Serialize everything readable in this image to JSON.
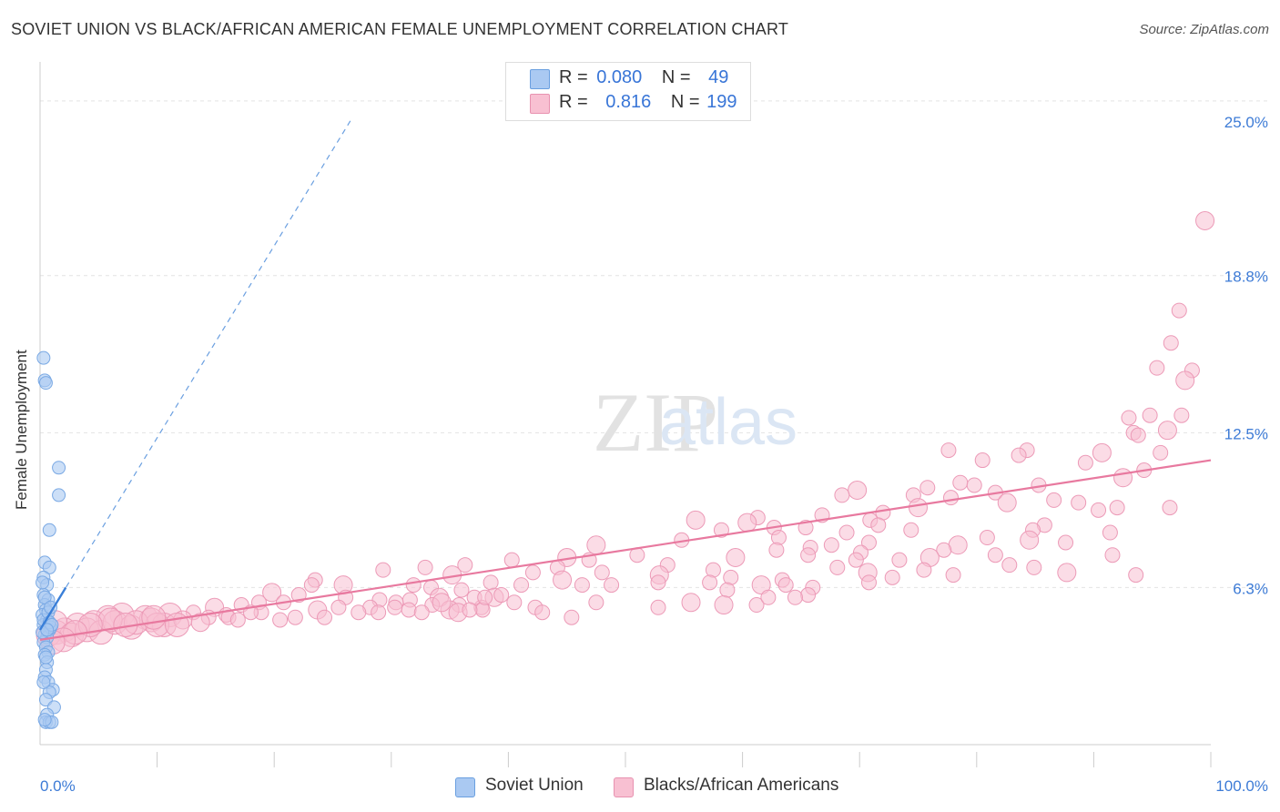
{
  "title": "SOVIET UNION VS BLACK/AFRICAN AMERICAN FEMALE UNEMPLOYMENT CORRELATION CHART",
  "source": "Source: ZipAtlas.com",
  "watermark": {
    "zip": "ZIP",
    "atlas": "atlas"
  },
  "legend": {
    "rows": [
      {
        "r_label": "R =",
        "r_value": "0.080",
        "n_label": "N =",
        "n_value": "49",
        "color": "#aac9f2",
        "border": "#6a9fe0"
      },
      {
        "r_label": "R =",
        "r_value": "0.816",
        "n_label": "N =",
        "n_value": "199",
        "color": "#f8c0d2",
        "border": "#e892b0"
      }
    ]
  },
  "bottom_legend": [
    {
      "label": "Soviet Union",
      "color": "#aac9f2",
      "border": "#6a9fe0"
    },
    {
      "label": "Blacks/African Americans",
      "color": "#f8c0d2",
      "border": "#e892b0"
    }
  ],
  "chart_data": {
    "type": "scatter",
    "title": "SOVIET UNION VS BLACK/AFRICAN AMERICAN FEMALE UNEMPLOYMENT CORRELATION CHART",
    "xlabel": "",
    "ylabel": "Female Unemployment",
    "xlim": [
      0,
      100
    ],
    "ylim": [
      0,
      27
    ],
    "x_tick_labels": [
      "0.0%",
      "100.0%"
    ],
    "y_ticks": [
      6.3,
      12.5,
      18.8,
      25.0
    ],
    "y_tick_labels": [
      "6.3%",
      "12.5%",
      "18.8%",
      "25.0%"
    ],
    "grid": true,
    "series": [
      {
        "name": "Soviet Union",
        "color": "#6a9fe0",
        "fill": "#aac9f2",
        "trend": {
          "x": [
            0,
            2.2
          ],
          "y": [
            4.6,
            6.3
          ],
          "dashed_extension": {
            "x": [
              0,
              26.5
            ],
            "y": [
              4.6,
              25.0
            ]
          }
        },
        "points": [
          [
            0.3,
            15.5
          ],
          [
            0.4,
            14.6
          ],
          [
            0.5,
            14.5
          ],
          [
            1.6,
            11.1
          ],
          [
            1.6,
            10.0
          ],
          [
            0.8,
            8.6
          ],
          [
            0.4,
            7.3
          ],
          [
            0.8,
            7.1
          ],
          [
            0.3,
            6.7
          ],
          [
            0.6,
            6.4
          ],
          [
            0.3,
            6.0
          ],
          [
            0.7,
            5.8
          ],
          [
            0.4,
            5.6
          ],
          [
            0.5,
            5.4
          ],
          [
            0.2,
            5.2
          ],
          [
            0.6,
            5.0
          ],
          [
            0.3,
            4.8
          ],
          [
            0.8,
            4.6
          ],
          [
            0.4,
            4.4
          ],
          [
            0.6,
            4.3
          ],
          [
            0.3,
            4.1
          ],
          [
            0.5,
            3.9
          ],
          [
            0.7,
            3.7
          ],
          [
            0.4,
            3.6
          ],
          [
            0.6,
            3.3
          ],
          [
            0.5,
            3.0
          ],
          [
            0.4,
            2.7
          ],
          [
            0.7,
            2.5
          ],
          [
            1.1,
            2.2
          ],
          [
            0.8,
            2.1
          ],
          [
            0.5,
            1.8
          ],
          [
            1.2,
            1.5
          ],
          [
            0.6,
            1.2
          ],
          [
            0.5,
            0.9
          ],
          [
            0.8,
            0.9
          ],
          [
            1.0,
            0.9
          ],
          [
            0.3,
            5.0
          ],
          [
            0.9,
            4.7
          ],
          [
            0.2,
            4.5
          ],
          [
            0.7,
            5.3
          ],
          [
            0.4,
            5.9
          ],
          [
            0.9,
            5.5
          ],
          [
            0.2,
            6.5
          ],
          [
            0.5,
            3.5
          ],
          [
            0.8,
            4.9
          ],
          [
            0.3,
            2.5
          ],
          [
            1.0,
            4.8
          ],
          [
            0.6,
            4.6
          ],
          [
            0.4,
            1.0
          ]
        ]
      },
      {
        "name": "Blacks/African Americans",
        "color": "#e8799f",
        "fill": "#f8c0d2",
        "trend": {
          "x": [
            0,
            100
          ],
          "y": [
            4.2,
            11.4
          ]
        },
        "points": [
          [
            99.5,
            21.0
          ],
          [
            97.3,
            17.4
          ],
          [
            96.6,
            16.1
          ],
          [
            95.4,
            15.1
          ],
          [
            98.4,
            15.0
          ],
          [
            97.8,
            14.6
          ],
          [
            93.0,
            13.1
          ],
          [
            94.8,
            13.2
          ],
          [
            97.5,
            13.2
          ],
          [
            93.4,
            12.5
          ],
          [
            96.3,
            12.6
          ],
          [
            93.8,
            12.4
          ],
          [
            77.6,
            11.8
          ],
          [
            84.3,
            11.8
          ],
          [
            83.6,
            11.6
          ],
          [
            90.7,
            11.7
          ],
          [
            89.3,
            11.3
          ],
          [
            80.5,
            11.4
          ],
          [
            95.7,
            11.7
          ],
          [
            94.3,
            11.0
          ],
          [
            92.5,
            10.7
          ],
          [
            75.8,
            10.3
          ],
          [
            78.6,
            10.5
          ],
          [
            79.8,
            10.4
          ],
          [
            85.3,
            10.4
          ],
          [
            69.8,
            10.2
          ],
          [
            68.5,
            10.0
          ],
          [
            74.6,
            10.0
          ],
          [
            77.8,
            9.9
          ],
          [
            81.6,
            10.1
          ],
          [
            82.6,
            9.7
          ],
          [
            88.7,
            9.7
          ],
          [
            86.6,
            9.8
          ],
          [
            92.0,
            9.5
          ],
          [
            90.4,
            9.4
          ],
          [
            75.0,
            9.5
          ],
          [
            96.5,
            9.5
          ],
          [
            72.0,
            9.3
          ],
          [
            70.9,
            9.0
          ],
          [
            61.3,
            9.1
          ],
          [
            56.0,
            9.0
          ],
          [
            66.8,
            9.2
          ],
          [
            65.4,
            8.7
          ],
          [
            71.6,
            8.8
          ],
          [
            74.4,
            8.6
          ],
          [
            60.4,
            8.9
          ],
          [
            85.8,
            8.8
          ],
          [
            84.8,
            8.6
          ],
          [
            80.9,
            8.3
          ],
          [
            87.6,
            8.1
          ],
          [
            84.5,
            8.2
          ],
          [
            91.4,
            8.5
          ],
          [
            62.7,
            8.7
          ],
          [
            58.2,
            8.6
          ],
          [
            54.8,
            8.2
          ],
          [
            47.5,
            8.0
          ],
          [
            70.8,
            8.1
          ],
          [
            67.6,
            8.0
          ],
          [
            68.9,
            8.5
          ],
          [
            63.1,
            8.3
          ],
          [
            78.4,
            8.0
          ],
          [
            77.2,
            7.8
          ],
          [
            62.9,
            7.8
          ],
          [
            65.8,
            7.9
          ],
          [
            70.1,
            7.7
          ],
          [
            76.0,
            7.5
          ],
          [
            81.6,
            7.6
          ],
          [
            73.4,
            7.4
          ],
          [
            84.9,
            7.1
          ],
          [
            91.6,
            7.6
          ],
          [
            59.4,
            7.5
          ],
          [
            65.6,
            7.6
          ],
          [
            69.7,
            7.4
          ],
          [
            51.0,
            7.6
          ],
          [
            53.6,
            7.2
          ],
          [
            45.0,
            7.5
          ],
          [
            40.3,
            7.4
          ],
          [
            46.9,
            7.4
          ],
          [
            36.3,
            7.2
          ],
          [
            32.9,
            7.1
          ],
          [
            35.2,
            6.8
          ],
          [
            38.5,
            6.5
          ],
          [
            42.1,
            6.9
          ],
          [
            44.2,
            7.1
          ],
          [
            48.0,
            6.9
          ],
          [
            52.9,
            6.8
          ],
          [
            57.5,
            7.0
          ],
          [
            59.0,
            6.7
          ],
          [
            63.4,
            6.6
          ],
          [
            68.1,
            7.1
          ],
          [
            70.7,
            6.9
          ],
          [
            72.8,
            6.7
          ],
          [
            75.5,
            7.0
          ],
          [
            78.0,
            6.8
          ],
          [
            82.8,
            7.2
          ],
          [
            87.7,
            6.9
          ],
          [
            93.6,
            6.8
          ],
          [
            29.3,
            7.0
          ],
          [
            23.5,
            6.6
          ],
          [
            23.2,
            6.4
          ],
          [
            25.9,
            6.4
          ],
          [
            31.9,
            6.4
          ],
          [
            33.4,
            6.3
          ],
          [
            36.0,
            6.2
          ],
          [
            41.1,
            6.4
          ],
          [
            44.6,
            6.6
          ],
          [
            46.3,
            6.4
          ],
          [
            48.8,
            6.4
          ],
          [
            52.8,
            6.5
          ],
          [
            57.2,
            6.5
          ],
          [
            61.6,
            6.4
          ],
          [
            58.7,
            6.2
          ],
          [
            63.7,
            6.4
          ],
          [
            66.0,
            6.3
          ],
          [
            70.8,
            6.5
          ],
          [
            19.8,
            6.1
          ],
          [
            22.1,
            6.0
          ],
          [
            26.1,
            5.9
          ],
          [
            29.0,
            5.8
          ],
          [
            31.6,
            5.8
          ],
          [
            34.1,
            5.9
          ],
          [
            35.8,
            5.6
          ],
          [
            37.7,
            5.5
          ],
          [
            40.5,
            5.7
          ],
          [
            42.3,
            5.5
          ],
          [
            38.8,
            5.9
          ],
          [
            28.2,
            5.5
          ],
          [
            31.5,
            5.4
          ],
          [
            33.5,
            5.6
          ],
          [
            30.4,
            5.7
          ],
          [
            35.0,
            5.4
          ],
          [
            37.1,
            5.9
          ],
          [
            20.8,
            5.7
          ],
          [
            18.7,
            5.7
          ],
          [
            17.2,
            5.6
          ],
          [
            14.9,
            5.5
          ],
          [
            15.9,
            5.2
          ],
          [
            13.1,
            5.3
          ],
          [
            11.1,
            5.2
          ],
          [
            9.0,
            5.1
          ],
          [
            7.0,
            5.2
          ],
          [
            5.8,
            5.1
          ],
          [
            4.6,
            4.9
          ],
          [
            3.2,
            4.8
          ],
          [
            2.1,
            4.6
          ],
          [
            1.4,
            4.5
          ],
          [
            0.7,
            4.4
          ],
          [
            1.3,
            4.9
          ],
          [
            2.7,
            4.4
          ],
          [
            4.0,
            4.6
          ],
          [
            5.2,
            4.5
          ],
          [
            6.4,
            4.9
          ],
          [
            7.8,
            4.7
          ],
          [
            9.5,
            5.0
          ],
          [
            10.6,
            4.8
          ],
          [
            12.2,
            5.0
          ],
          [
            14.4,
            5.1
          ],
          [
            16.1,
            5.1
          ],
          [
            18.9,
            5.3
          ],
          [
            20.5,
            5.0
          ],
          [
            23.7,
            5.4
          ],
          [
            25.5,
            5.5
          ],
          [
            27.2,
            5.3
          ],
          [
            30.3,
            5.5
          ],
          [
            32.6,
            5.3
          ],
          [
            35.7,
            5.3
          ],
          [
            37.8,
            5.4
          ],
          [
            42.9,
            5.3
          ],
          [
            47.5,
            5.7
          ],
          [
            52.8,
            5.5
          ],
          [
            58.4,
            5.6
          ],
          [
            61.2,
            5.6
          ],
          [
            65.6,
            6.0
          ],
          [
            62.2,
            5.9
          ],
          [
            64.5,
            5.9
          ],
          [
            55.6,
            5.7
          ],
          [
            45.4,
            5.1
          ],
          [
            36.7,
            5.4
          ],
          [
            28.9,
            5.3
          ],
          [
            18.0,
            5.3
          ],
          [
            13.7,
            4.9
          ],
          [
            10.0,
            4.8
          ],
          [
            11.7,
            4.8
          ],
          [
            8.2,
            4.9
          ],
          [
            6.0,
            5.0
          ],
          [
            4.3,
            4.8
          ],
          [
            3.0,
            4.5
          ],
          [
            2.0,
            4.2
          ],
          [
            1.1,
            4.1
          ],
          [
            7.3,
            4.8
          ],
          [
            9.7,
            5.1
          ],
          [
            16.9,
            5.0
          ],
          [
            21.8,
            5.1
          ],
          [
            24.3,
            5.1
          ],
          [
            38.0,
            5.9
          ],
          [
            34.3,
            5.7
          ],
          [
            39.4,
            6.0
          ]
        ]
      }
    ]
  }
}
